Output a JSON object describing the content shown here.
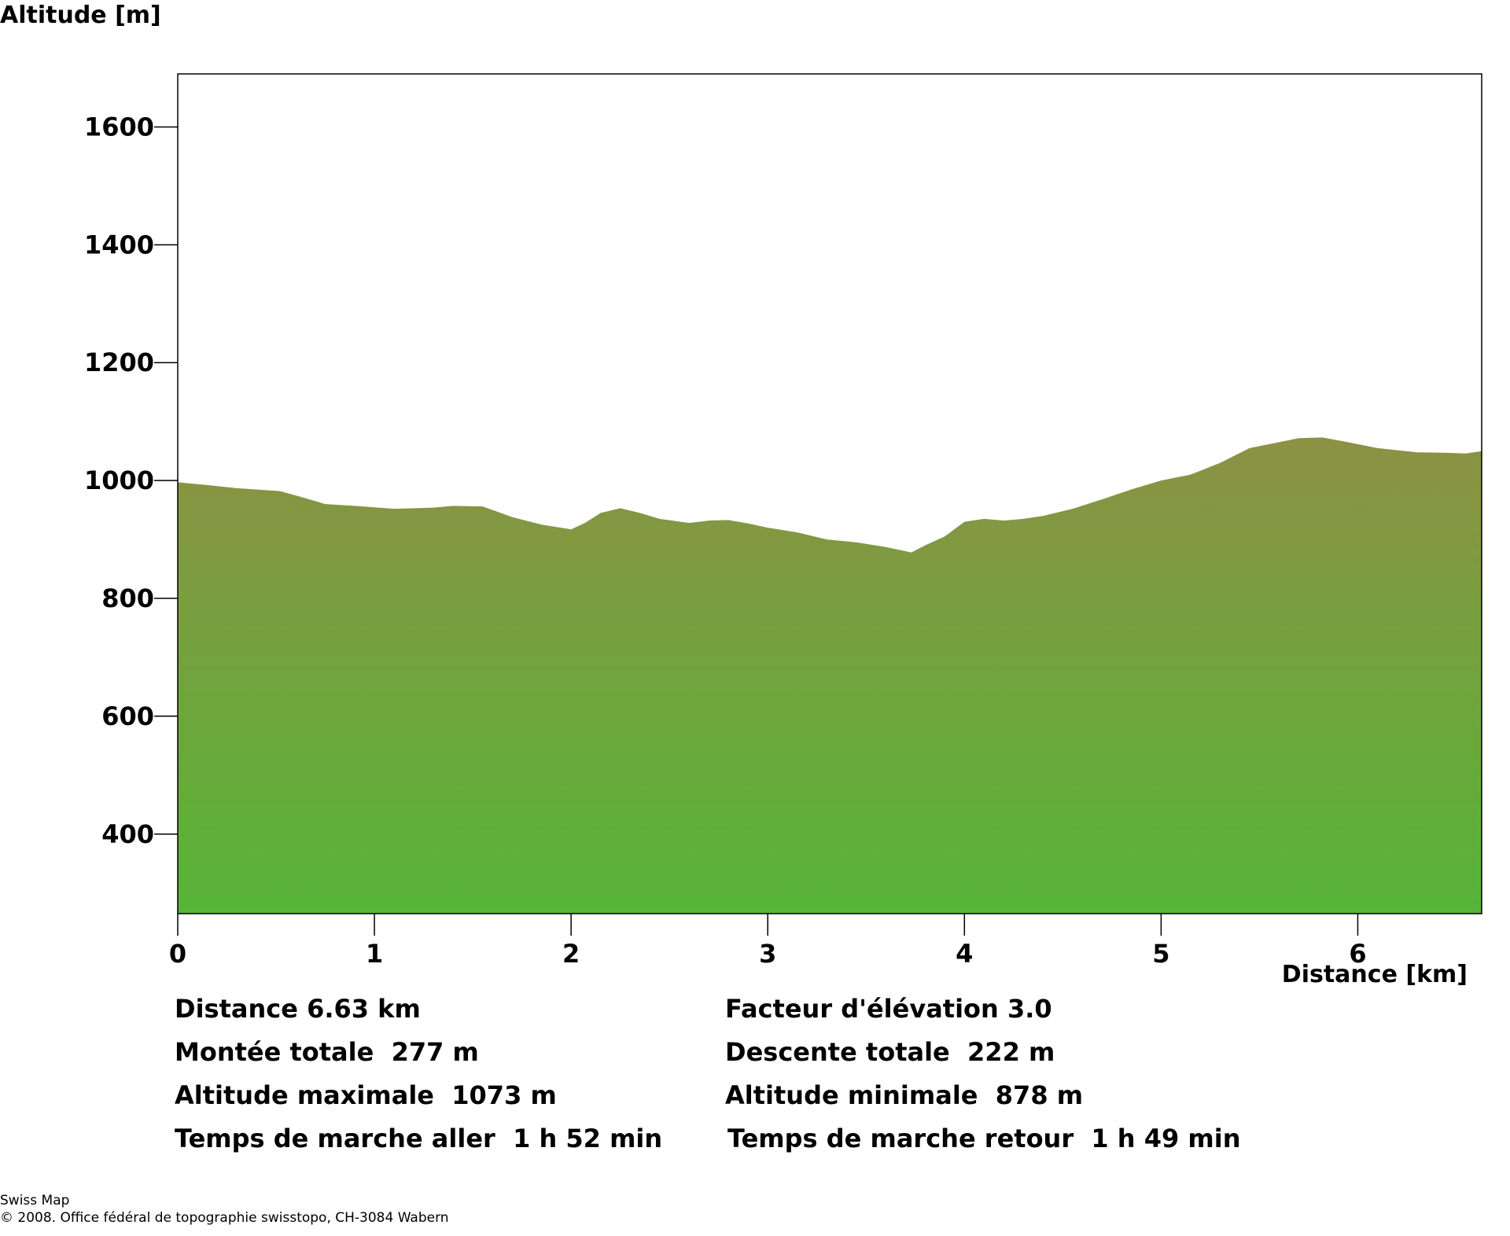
{
  "chart_data": {
    "type": "area",
    "ylabel": "Altitude [m]",
    "xlabel": "Distance [km]",
    "xlim": [
      0,
      6.63
    ],
    "ylim": [
      265,
      1690
    ],
    "y_ticks": [
      400,
      600,
      800,
      1000,
      1200,
      1400,
      1600
    ],
    "x_ticks": [
      0,
      1,
      2,
      3,
      4,
      5,
      6
    ],
    "grid": false,
    "fill_top_color": "#8c9144",
    "fill_bottom_color": "#57b537",
    "x": [
      0,
      0.13,
      0.3,
      0.52,
      0.65,
      0.75,
      0.9,
      1.1,
      1.2,
      1.3,
      1.4,
      1.55,
      1.7,
      1.85,
      2.0,
      2.07,
      2.15,
      2.25,
      2.35,
      2.45,
      2.6,
      2.7,
      2.8,
      2.9,
      3.0,
      3.15,
      3.3,
      3.45,
      3.6,
      3.73,
      3.8,
      3.9,
      4.0,
      4.1,
      4.2,
      4.3,
      4.4,
      4.55,
      4.7,
      4.85,
      5.0,
      5.15,
      5.3,
      5.45,
      5.6,
      5.7,
      5.82,
      5.95,
      6.1,
      6.3,
      6.45,
      6.55,
      6.63
    ],
    "y": [
      997,
      993,
      987,
      982,
      970,
      960,
      957,
      952,
      953,
      954,
      957,
      956,
      938,
      925,
      917,
      928,
      945,
      953,
      945,
      935,
      928,
      932,
      933,
      927,
      920,
      912,
      900,
      895,
      887,
      878,
      890,
      905,
      930,
      935,
      932,
      935,
      940,
      952,
      968,
      985,
      1000,
      1010,
      1030,
      1055,
      1065,
      1072,
      1073,
      1065,
      1055,
      1048,
      1047,
      1046,
      1050
    ]
  },
  "stats": {
    "distance": "Distance 6.63 km",
    "elevation_factor": "Facteur d'élévation 3.0",
    "ascent": "Montée totale  277 m",
    "descent": "Descente totale  222 m",
    "max_alt": "Altitude maximale  1073 m",
    "min_alt": "Altitude minimale  878 m",
    "time_out": "Temps de marche aller  1 h 52 min",
    "time_back": "Temps de marche retour  1 h 49 min"
  },
  "credits": {
    "line1": "Swiss Map",
    "line2": "© 2008. Office fédéral de topographie swisstopo, CH-3084 Wabern"
  }
}
